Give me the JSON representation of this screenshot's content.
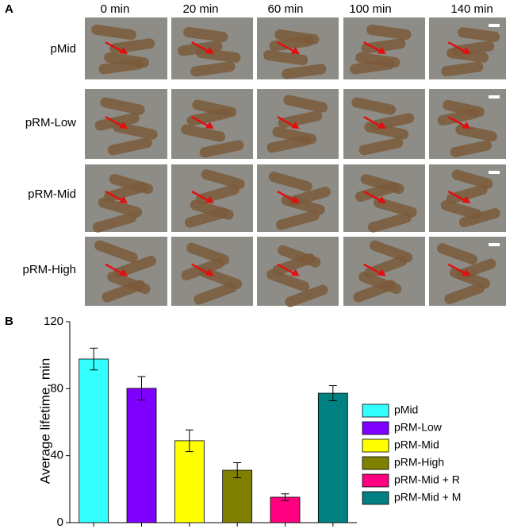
{
  "panel_a": {
    "label": "A",
    "columns": [
      "0 min",
      "20 min",
      "60 min",
      "100 min",
      "140 min"
    ],
    "rows": [
      "pMid",
      "pRM-Low",
      "pRM-Mid",
      "pRM-High"
    ]
  },
  "chart_data": {
    "type": "bar",
    "panel_label": "B",
    "ylabel": "Average lifetime, min",
    "categories": [
      "pMid",
      "pRM-Low",
      "pRM-Mid",
      "pRM-High",
      "pRM-Mid + R",
      "pRM-Mid + M"
    ],
    "values": [
      97.7,
      80.2,
      48.9,
      31.3,
      15.2,
      77.3
    ],
    "errors": [
      6.5,
      7,
      6.5,
      4.5,
      2,
      4.5
    ],
    "colors": [
      "#33ffff",
      "#8000ff",
      "#ffff00",
      "#808000",
      "#ff0080",
      "#008080"
    ],
    "ylim": [
      0,
      120
    ],
    "yticks": [
      0,
      40,
      80,
      120
    ]
  }
}
